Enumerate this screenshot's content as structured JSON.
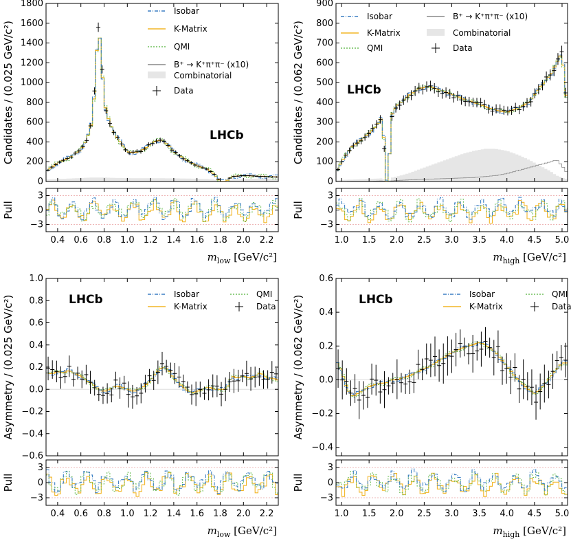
{
  "colors": {
    "isobar": "#3b7fc4",
    "kmatrix": "#f2b526",
    "qmi": "#6fbf5a",
    "bkpp": "#888888",
    "comb_fill": "#e6e6e6",
    "data": "#000000",
    "pull_ref": "#e9a0a0"
  },
  "legend": {
    "isobar": "Isobar",
    "kmatrix": "K-Matrix",
    "qmi": "QMI",
    "bkpp": "B⁺ → K⁺π⁺π⁻ (x10)",
    "comb": "Combinatorial",
    "data": "Data"
  },
  "labels": {
    "lhcb": "LHCb",
    "pull": "Pull",
    "yl_cand_low": "Candidates / (0.025 GeV/c²)",
    "yl_cand_high": "Candidates / (0.062 GeV/c²)",
    "yl_asym_low": "Asymmetry / (0.025 GeV/c²)",
    "yl_asym_high": "Asymmetry / (0.062 GeV/c²)",
    "xl_low": "m_low [GeV/c²]",
    "xl_high": "m_high [GeV/c²]"
  },
  "ticks": {
    "x_low": [
      "0.4",
      "0.6",
      "0.8",
      "1.0",
      "1.2",
      "1.4",
      "1.6",
      "1.8",
      "2.0",
      "2.2"
    ],
    "x_high": [
      "1.0",
      "1.5",
      "2.0",
      "2.5",
      "3.0",
      "3.5",
      "4.0",
      "4.5",
      "5.0"
    ],
    "y_cand_low": [
      "0",
      "200",
      "400",
      "600",
      "800",
      "1000",
      "1200",
      "1400",
      "1600",
      "1800"
    ],
    "y_cand_high": [
      "0",
      "100",
      "200",
      "300",
      "400",
      "500",
      "600",
      "700",
      "800",
      "900"
    ],
    "y_asym_low": [
      "−0.6",
      "−0.4",
      "−0.2",
      "0.0",
      "0.2",
      "0.4",
      "0.6",
      "0.8",
      "1.0"
    ],
    "y_asym_high": [
      "−0.4",
      "−0.2",
      "0.0",
      "0.2",
      "0.4",
      "0.6"
    ],
    "y_pull": [
      "−3",
      "0",
      "3"
    ]
  },
  "chart_data": [
    {
      "type": "line",
      "panel": "top-left",
      "xlabel": "m_low [GeV/c²]",
      "ylabel": "Candidates / (0.025 GeV/c²)",
      "xlim": [
        0.3,
        2.3
      ],
      "ylim": [
        0,
        1800
      ],
      "x": [
        0.3,
        0.4,
        0.5,
        0.6,
        0.65,
        0.7,
        0.725,
        0.75,
        0.775,
        0.8,
        0.85,
        0.9,
        0.95,
        1.0,
        1.05,
        1.1,
        1.15,
        1.2,
        1.25,
        1.3,
        1.35,
        1.4,
        1.5,
        1.6,
        1.7,
        1.75,
        1.8,
        1.85,
        1.9,
        2.0,
        2.1,
        2.2,
        2.3
      ],
      "series": [
        {
          "name": "Data",
          "values": [
            100,
            190,
            240,
            320,
            420,
            620,
            1050,
            1600,
            1300,
            800,
            580,
            470,
            380,
            300,
            290,
            300,
            330,
            380,
            410,
            420,
            370,
            300,
            220,
            160,
            120,
            70,
            0,
            0,
            50,
            60,
            55,
            50,
            45
          ]
        },
        {
          "name": "Combinatorial",
          "values": [
            20,
            25,
            30,
            35,
            38,
            40,
            40,
            40,
            40,
            40,
            38,
            36,
            35,
            34,
            33,
            33,
            33,
            33,
            33,
            33,
            32,
            32,
            30,
            28,
            25,
            20,
            0,
            0,
            22,
            25,
            28,
            30,
            30
          ]
        }
      ],
      "pull_ylim": [
        -4.5,
        4.5
      ],
      "legend_location": "upper right"
    },
    {
      "type": "line",
      "panel": "top-right",
      "xlabel": "m_high [GeV/c²]",
      "ylabel": "Candidates / (0.062 GeV/c²)",
      "xlim": [
        0.9,
        5.1
      ],
      "ylim": [
        0,
        900
      ],
      "x": [
        0.9,
        1.0,
        1.2,
        1.4,
        1.6,
        1.75,
        1.8,
        1.85,
        1.9,
        2.0,
        2.2,
        2.4,
        2.6,
        2.8,
        3.0,
        3.2,
        3.4,
        3.6,
        3.8,
        4.0,
        4.2,
        4.4,
        4.6,
        4.8,
        4.9,
        5.0,
        5.1
      ],
      "series": [
        {
          "name": "Data",
          "values": [
            40,
            100,
            180,
            220,
            270,
            330,
            0,
            0,
            330,
            380,
            430,
            470,
            480,
            460,
            440,
            420,
            400,
            380,
            360,
            350,
            370,
            400,
            480,
            540,
            600,
            650,
            360
          ]
        },
        {
          "name": "Combinatorial",
          "values": [
            5,
            8,
            10,
            12,
            14,
            16,
            0,
            0,
            18,
            25,
            40,
            60,
            80,
            100,
            120,
            140,
            155,
            165,
            165,
            155,
            135,
            110,
            80,
            50,
            30,
            20,
            10
          ]
        },
        {
          "name": "B⁺ → K⁺π⁺π⁻ (x10)",
          "values": [
            0,
            0,
            1,
            1,
            2,
            3,
            0,
            0,
            3,
            5,
            8,
            10,
            12,
            14,
            16,
            18,
            20,
            25,
            30,
            40,
            55,
            70,
            85,
            100,
            110,
            80,
            40
          ]
        }
      ],
      "pull_ylim": [
        -4.5,
        4.5
      ],
      "legend_location": "upper right"
    },
    {
      "type": "line",
      "panel": "bottom-left",
      "xlabel": "m_low [GeV/c²]",
      "ylabel": "Asymmetry / (0.025 GeV/c²)",
      "xlim": [
        0.3,
        2.3
      ],
      "ylim": [
        -0.6,
        1.0
      ],
      "x": [
        0.3,
        0.35,
        0.4,
        0.45,
        0.5,
        0.55,
        0.6,
        0.65,
        0.7,
        0.75,
        0.8,
        0.85,
        0.9,
        0.95,
        1.0,
        1.05,
        1.1,
        1.15,
        1.2,
        1.25,
        1.3,
        1.35,
        1.4,
        1.45,
        1.5,
        1.55,
        1.6,
        1.65,
        1.7,
        1.75,
        1.8,
        1.85,
        1.9,
        1.95,
        2.0,
        2.05,
        2.1,
        2.15,
        2.2,
        2.25,
        2.3
      ],
      "series": [
        {
          "name": "Data",
          "values": [
            0.15,
            0.14,
            0.16,
            0.15,
            0.17,
            0.14,
            0.12,
            0.08,
            0.05,
            0.0,
            -0.02,
            0.0,
            0.03,
            0.02,
            0.0,
            -0.02,
            0.0,
            0.03,
            0.08,
            0.15,
            0.2,
            0.18,
            0.1,
            0.05,
            0.0,
            -0.03,
            -0.02,
            0.0,
            0.02,
            0.0,
            0.0,
            0.0,
            0.12,
            0.1,
            0.12,
            0.1,
            0.12,
            0.15,
            0.1,
            0.1,
            0.08
          ]
        }
      ],
      "pull_ylim": [
        -4.5,
        4.5
      ],
      "legend_location": "upper right"
    },
    {
      "type": "line",
      "panel": "bottom-right",
      "xlabel": "m_high [GeV/c²]",
      "ylabel": "Asymmetry / (0.062 GeV/c²)",
      "xlim": [
        0.9,
        5.1
      ],
      "ylim": [
        -0.45,
        0.6
      ],
      "x": [
        0.9,
        1.0,
        1.1,
        1.2,
        1.3,
        1.4,
        1.5,
        1.6,
        1.7,
        1.8,
        1.9,
        2.0,
        2.2,
        2.4,
        2.6,
        2.8,
        3.0,
        3.2,
        3.4,
        3.5,
        3.6,
        3.8,
        4.0,
        4.2,
        4.4,
        4.5,
        4.6,
        4.8,
        4.9,
        5.0,
        5.1
      ],
      "series": [
        {
          "name": "Data",
          "values": [
            0.12,
            0.05,
            -0.05,
            -0.1,
            -0.08,
            -0.06,
            -0.04,
            -0.03,
            -0.02,
            -0.02,
            0.0,
            0.0,
            0.02,
            0.05,
            0.08,
            0.12,
            0.16,
            0.19,
            0.21,
            0.22,
            0.21,
            0.16,
            0.08,
            0.0,
            -0.06,
            -0.08,
            -0.06,
            0.02,
            0.06,
            0.1,
            0.1
          ]
        }
      ],
      "pull_ylim": [
        -4.5,
        4.5
      ],
      "legend_location": "upper right"
    }
  ]
}
